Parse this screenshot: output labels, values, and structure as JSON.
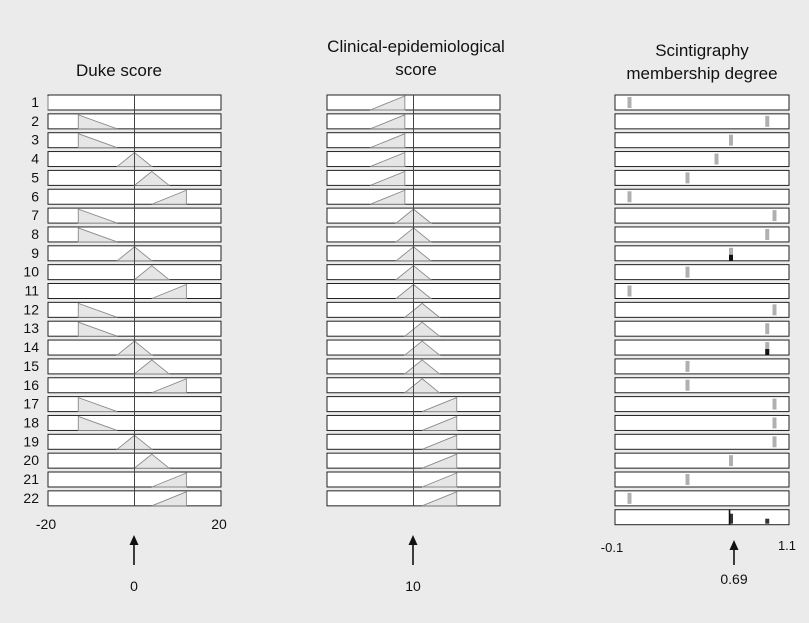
{
  "panels": [
    {
      "title_lines": [
        "Duke score"
      ],
      "axis_labels": [
        "-20",
        "20"
      ],
      "marker_label": "0"
    },
    {
      "title_lines": [
        "Clinical-epidemiological",
        "score"
      ],
      "axis_labels": [],
      "marker_label": "10"
    },
    {
      "title_lines": [
        "Scintigraphy",
        "membership degree"
      ],
      "axis_labels": [
        "-0.1",
        "1.1"
      ],
      "marker_label": "0.69"
    }
  ],
  "row_labels": [
    "1",
    "2",
    "3",
    "4",
    "5",
    "6",
    "7",
    "8",
    "9",
    "10",
    "11",
    "12",
    "13",
    "14",
    "15",
    "16",
    "17",
    "18",
    "19",
    "20",
    "21",
    "22"
  ],
  "chart_data": {
    "type": "fuzzy-rule-diagram",
    "rules": 22,
    "duke_score": {
      "xlim": [
        -20,
        20
      ],
      "input": 0,
      "triangles": [
        [
          -20,
          -20,
          -20
        ],
        [
          -13,
          -13,
          -4
        ],
        [
          -13,
          -13,
          -4
        ],
        [
          -4,
          0,
          4
        ],
        [
          0,
          4,
          8
        ],
        [
          4,
          12,
          12
        ],
        [
          -13,
          -13,
          -4
        ],
        [
          -13,
          -13,
          -4
        ],
        [
          -4,
          0,
          4
        ],
        [
          0,
          4,
          8
        ],
        [
          4,
          12,
          12
        ],
        [
          -13,
          -13,
          -4
        ],
        [
          -13,
          -13,
          -4
        ],
        [
          -4,
          0,
          4
        ],
        [
          0,
          4,
          8
        ],
        [
          4,
          12,
          12
        ],
        [
          -13,
          -13,
          -4
        ],
        [
          -13,
          -13,
          -4
        ],
        [
          -4,
          0,
          4
        ],
        [
          0,
          4,
          8
        ],
        [
          4,
          12,
          12
        ],
        [
          4,
          12,
          12
        ]
      ]
    },
    "clinical_epidemiological_score": {
      "xlim": [
        -10,
        30
      ],
      "input": 10,
      "triangles": [
        [
          0,
          8,
          8
        ],
        [
          0,
          8,
          8
        ],
        [
          0,
          8,
          8
        ],
        [
          0,
          8,
          8
        ],
        [
          0,
          8,
          8
        ],
        [
          0,
          8,
          8
        ],
        [
          6,
          10,
          14
        ],
        [
          6,
          10,
          14
        ],
        [
          6,
          10,
          14
        ],
        [
          6,
          10,
          14
        ],
        [
          6,
          10,
          14
        ],
        [
          8,
          12,
          16
        ],
        [
          8,
          12,
          16
        ],
        [
          8,
          12,
          16
        ],
        [
          8,
          12,
          16
        ],
        [
          8,
          12,
          16
        ],
        [
          12,
          20,
          20
        ],
        [
          12,
          20,
          20
        ],
        [
          12,
          20,
          20
        ],
        [
          12,
          20,
          20
        ],
        [
          12,
          20,
          20
        ],
        [
          12,
          20,
          20
        ]
      ]
    },
    "scintigraphy_membership_degree": {
      "xlim": [
        -0.1,
        1.1
      ],
      "output": 0.69,
      "singletons": [
        0,
        0.95,
        0.7,
        0.6,
        0.4,
        0,
        1.0,
        0.95,
        0.7,
        0.4,
        0,
        1.0,
        0.95,
        0.95,
        0.4,
        0.4,
        1.0,
        1.0,
        1.0,
        0.7,
        0.4,
        0
      ],
      "aggregate": [
        0.7,
        0.95
      ]
    }
  }
}
